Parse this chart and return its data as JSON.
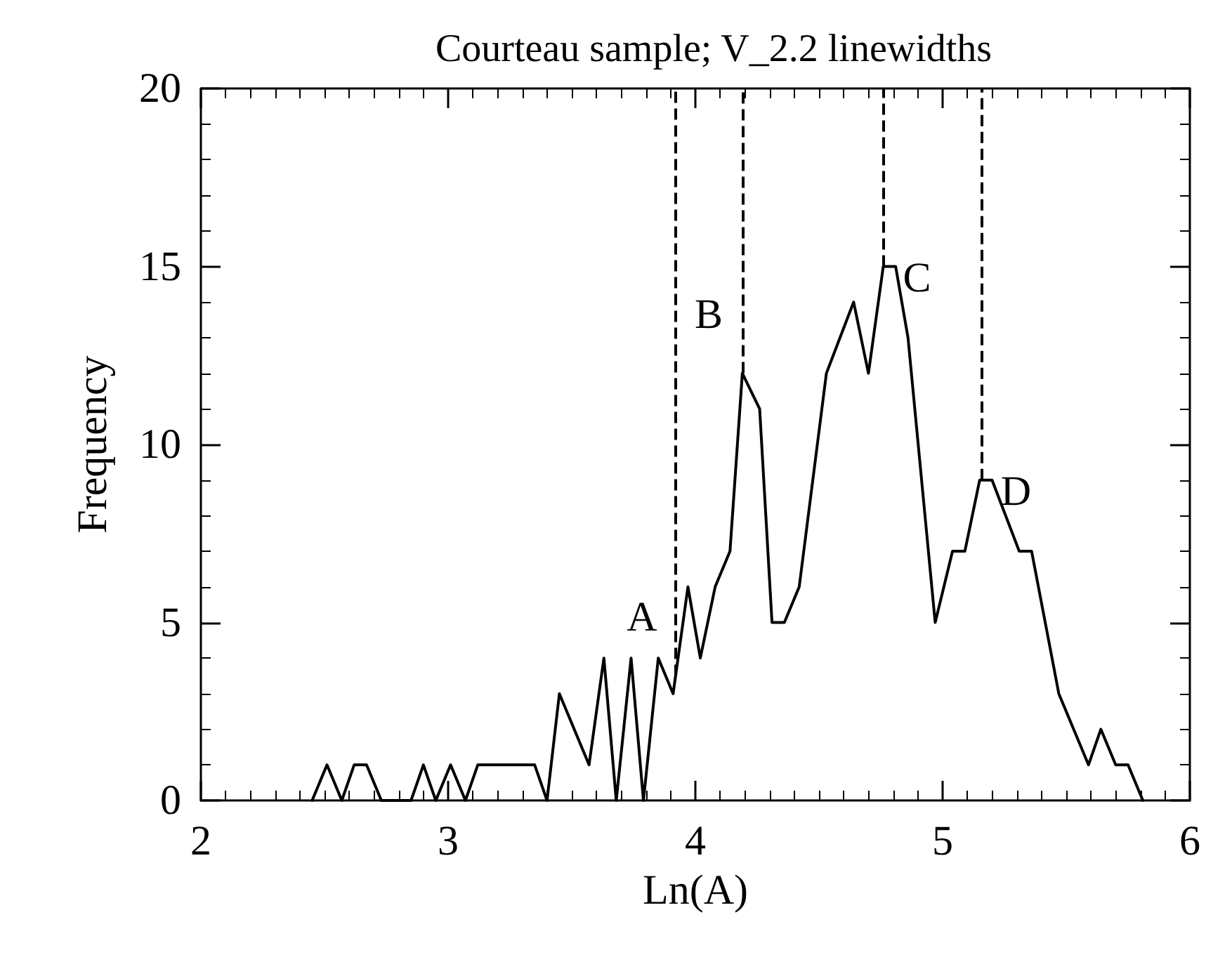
{
  "chart_data": {
    "type": "line",
    "title": "Courteau sample; V_2.2 linewidths",
    "xlabel": "Ln(A)",
    "ylabel": "Frequency",
    "xlim": [
      2,
      6
    ],
    "xticks": [
      2,
      3,
      4,
      5,
      6
    ],
    "ylim": [
      0,
      20
    ],
    "yticks": [
      0,
      5,
      10,
      15,
      20
    ],
    "grid": false,
    "marker": "none",
    "line_style": "solid",
    "series": [
      {
        "color": "#000000",
        "x": [
          2.45,
          2.51,
          2.57,
          2.62,
          2.67,
          2.73,
          2.85,
          2.9,
          2.95,
          3.01,
          3.07,
          3.12,
          3.35,
          3.4,
          3.45,
          3.57,
          3.63,
          3.68,
          3.74,
          3.79,
          3.85,
          3.91,
          3.97,
          4.02,
          4.08,
          4.14,
          4.19,
          4.26,
          4.31,
          4.36,
          4.42,
          4.53,
          4.64,
          4.7,
          4.76,
          4.81,
          4.86,
          4.97,
          5.04,
          5.09,
          5.15,
          5.2,
          5.31,
          5.36,
          5.47,
          5.59,
          5.64,
          5.7,
          5.75,
          5.81
        ],
        "values": [
          0,
          1,
          0,
          1,
          1,
          0,
          0,
          1,
          0,
          1,
          0,
          1,
          1,
          0,
          3,
          1,
          4,
          0,
          4,
          0,
          4,
          3,
          6,
          4,
          6,
          7,
          12,
          11,
          5,
          5,
          6,
          12,
          14,
          12,
          15,
          15,
          13,
          5,
          7,
          7,
          9,
          9,
          7,
          7,
          3,
          1,
          2,
          1,
          1,
          0
        ]
      }
    ],
    "ref_lines": [
      {
        "axis": "x",
        "value": 3.92,
        "label": "A",
        "line_style": "dashed"
      },
      {
        "axis": "x",
        "value": 4.19,
        "label": "B",
        "line_style": "dashed"
      },
      {
        "axis": "x",
        "value": 4.76,
        "label": "C",
        "line_style": "dashed"
      },
      {
        "axis": "x",
        "value": 5.16,
        "label": "D",
        "line_style": "dashed"
      }
    ]
  }
}
